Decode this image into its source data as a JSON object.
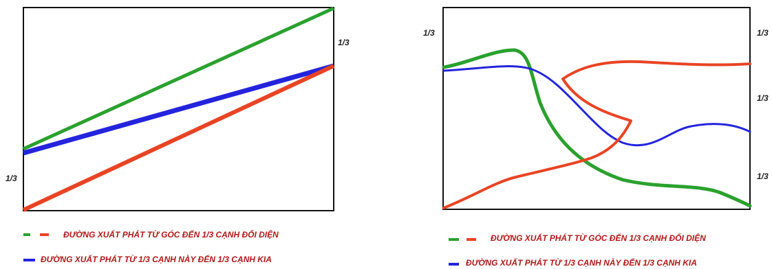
{
  "colors": {
    "green": "#2aa12e",
    "red": "#e84424",
    "blue": "#2424dd",
    "legend_text": "#b01818"
  },
  "left_panel": {
    "tick_labels": {
      "right_top": "1/3",
      "left_bottom": "1/3"
    },
    "legend": {
      "corner_line": "ĐƯỜNG XUẤT PHÁT TỪ GÓC ĐẾN 1/3 CẠNH ĐỐI DIỆN",
      "edge_line": "ĐƯỜNG XUẤT PHÁT TỪ 1/3 CẠNH NÀY ĐẾN 1/3 CẠNH KIA"
    }
  },
  "right_panel": {
    "tick_labels": {
      "left_top": "1/3",
      "right_1": "1/3",
      "right_2": "1/3",
      "right_3": "1/3"
    },
    "legend": {
      "corner_line": "ĐƯỜNG XUẤT PHÁT TỪ GÓC ĐẾN 1/3 CẠNH ĐỐI DIỆN",
      "edge_line": "ĐƯỜNG XUẤT PHÁT TỪ 1/3 CẠNH NÀY ĐẾN 1/3 CẠNH KIA"
    }
  }
}
